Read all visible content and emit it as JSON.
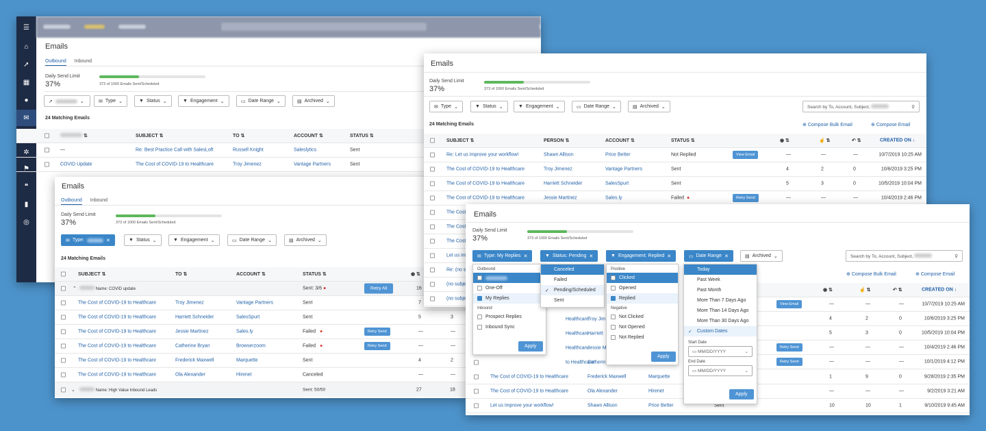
{
  "app": {
    "title": "Emails",
    "tabs": [
      "Outbound",
      "Inbound"
    ],
    "limit_label": "Daily Send Limit",
    "limit_value": "37%",
    "limit_progress": 0.373,
    "limit_sub": "373 of 1000 Emails Sent/Scheduled"
  },
  "filters": {
    "type": "Type",
    "status": "Status",
    "engagement": "Engagement",
    "date_range": "Date Range",
    "archived": "Archived",
    "type_active": "Type:",
    "type_replies": "Type: My Replies",
    "status_pending": "Status: Pending",
    "engagement_replied": "Engagement: Replied"
  },
  "search_placeholder": "Search by To, Account, Subject,",
  "matching": "24 Matching Emails",
  "compose_bulk": "Compose Bulk Email",
  "compose": "Compose Email",
  "cols": {
    "subject": "SUBJECT",
    "to": "TO",
    "person": "PERSON",
    "account": "ACCOUNT",
    "status": "STATUS",
    "created": "CREATED ON"
  },
  "w1": {
    "rows": [
      {
        "subject": "—",
        "rsub": "Re: Best Practice Call with SalesLoft",
        "to": "Russell Knight",
        "account": "Saleslytics",
        "status": "Sent"
      },
      {
        "subject": "COVID Update",
        "rsub": "The Cost of COVID-19 to Healthcare",
        "to": "Troy Jimenez",
        "account": "Vantage Partners",
        "status": "Sent"
      }
    ]
  },
  "w2": {
    "group1": "Name: COVID update",
    "group1_status": "Sent: 3/6",
    "group1_n": "16",
    "retry_all": "Retry All",
    "rows": [
      {
        "subject": "The Cost of COVID-19 to Healthcare",
        "to": "Troy Jimenez",
        "account": "Vantage Partners",
        "status": "Sent",
        "a": "7",
        "b": "",
        "retry": ""
      },
      {
        "subject": "The Cost of COVID-19 to Healthcare",
        "to": "Harriett Schneider",
        "account": "SalesSpurt",
        "status": "Sent",
        "a": "5",
        "b": "3",
        "retry": ""
      },
      {
        "subject": "The Cost of COVID-19 to Healthcare",
        "to": "Jessie Martinez",
        "account": "Sales.ly",
        "status": "Failed",
        "a": "—",
        "b": "—",
        "retry": "Retry Send"
      },
      {
        "subject": "The Cost of COVID-19 to Healthcare",
        "to": "Catherine Bryan",
        "account": "Browserzoom",
        "status": "Failed",
        "a": "—",
        "b": "—",
        "retry": "Retry Send"
      },
      {
        "subject": "The Cost of COVID-19 to Healthcare",
        "to": "Frederick Maxwell",
        "account": "Marquette",
        "status": "Sent",
        "a": "4",
        "b": "2",
        "retry": ""
      },
      {
        "subject": "The Cost of COVID-19 to Healthcare",
        "to": "Ola Alexander",
        "account": "Hirenet",
        "status": "Canceled",
        "a": "—",
        "b": "—",
        "retry": ""
      }
    ],
    "group2": "Name: High Value Inbound Leads",
    "group2_status": "Sent: 50/50",
    "group2_a": "27",
    "group2_b": "18"
  },
  "w3": {
    "rows": [
      {
        "subject": "Re: Let us improve your workflow!",
        "person": "Shawn Allison",
        "account": "Price Better",
        "status": "Not Replied",
        "btn": "View Email",
        "o": "—",
        "c": "—",
        "r": "—",
        "date": "10/7/2019 10:25 AM"
      },
      {
        "subject": "The Cost of COVID-19 to Healthcare",
        "person": "Troy Jimenez",
        "account": "Vantage Partners",
        "status": "Sent",
        "btn": "",
        "o": "4",
        "c": "2",
        "r": "0",
        "date": "10/6/2019 3:25 PM"
      },
      {
        "subject": "The Cost of COVID-19 to Healthcare",
        "person": "Harriett Schneider",
        "account": "SalesSpurt",
        "status": "Sent",
        "btn": "",
        "o": "5",
        "c": "3",
        "r": "0",
        "date": "10/5/2019 10:04 PM"
      },
      {
        "subject": "The Cost of COVID-19 to Healthcare",
        "person": "Jessie Martinez",
        "account": "Sales.ly",
        "status": "Failed",
        "btn": "Retry Send",
        "o": "—",
        "c": "—",
        "r": "—",
        "date": "10/4/2019 2:46 PM"
      }
    ],
    "short": [
      "The Cost",
      "The Cost",
      "The Cost",
      "Let us im",
      "Re: (no su",
      "(no subje",
      "(no subje"
    ]
  },
  "w4": {
    "rows": [
      {
        "subject": "The Cost of COVID-19 to Healthcare",
        "person": "Frederick Maxwell",
        "account": "Marquette",
        "status": "",
        "o": "1",
        "c": "9",
        "r": "0",
        "date": "9/28/2019 2:35 PM"
      },
      {
        "subject": "The Cost of COVID-19 to Healthcare",
        "person": "Ola Alexander",
        "account": "Hirenet",
        "status": "",
        "o": "—",
        "c": "—",
        "r": "—",
        "date": "9/2/2019 3:21 AM"
      },
      {
        "subject": "Let us improve your workflow!",
        "person": "Shawn Allison",
        "account": "Price Better",
        "status": "Sent",
        "o": "10",
        "c": "10",
        "r": "1",
        "date": "9/10/2019 9:45 AM"
      }
    ],
    "right": [
      {
        "btn": "View Email",
        "o": "—",
        "c": "—",
        "r": "—",
        "date": "10/7/2019 10:25 AM"
      },
      {
        "btn": "",
        "o": "4",
        "c": "2",
        "r": "0",
        "date": "10/6/2019 3:25 PM"
      },
      {
        "btn": "",
        "o": "5",
        "c": "3",
        "r": "0",
        "date": "10/5/2019 10:04 PM"
      },
      {
        "btn": "Retry Send",
        "o": "—",
        "c": "—",
        "r": "—",
        "date": "10/4/2019 2:46 PM"
      },
      {
        "btn": "Retry Send",
        "o": "—",
        "c": "—",
        "r": "—",
        "date": "10/1/2019 4:12 PM"
      }
    ],
    "mid": [
      {
        "s": "Healthcare",
        "p": "Troy Jim"
      },
      {
        "s": "Healthcare",
        "p": "Harriett"
      },
      {
        "s": "Healthcare",
        "p": "Jessie M"
      },
      {
        "s": "to Healthcare",
        "p": "Catherin"
      }
    ],
    "type_dd": {
      "h1": "Outbound",
      "items": [
        "One-Off",
        "My Replies"
      ],
      "h2": "Inbound",
      "items2": [
        "Prospect Replies",
        "Inbound Sync"
      ],
      "apply": "Apply"
    },
    "status_dd": {
      "items": [
        "Canceled",
        "Failed",
        "Pending/Scheduled",
        "Sent"
      ]
    },
    "eng_dd": {
      "h1": "Positive",
      "items": [
        "Clicked",
        "Opened",
        "Replied"
      ],
      "h2": "Negative",
      "items2": [
        "Not Clicked",
        "Not Opened",
        "Not Replied"
      ],
      "apply": "Apply"
    },
    "date_dd": {
      "items": [
        "Today",
        "Past Week",
        "Past Month",
        "More Than 7 Days Ago",
        "More Than 14 Days Ago",
        "More Than 30 Days Ago",
        "Custom Dates"
      ],
      "start": "Start Date",
      "end": "End Date",
      "placeholder": "MM/DD/YYYY",
      "apply": "Apply"
    }
  },
  "accent": "#1f5fa6"
}
